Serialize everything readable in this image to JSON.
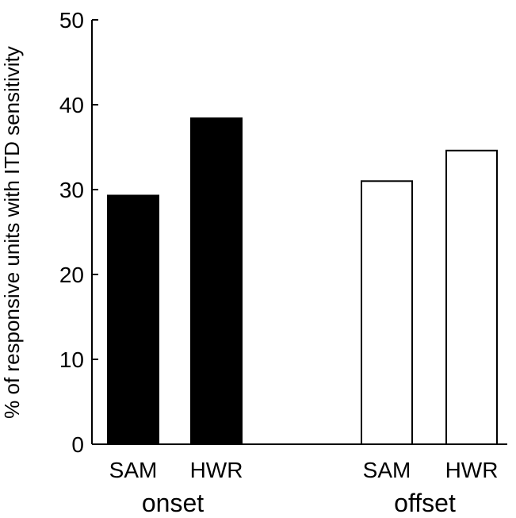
{
  "chart_data": {
    "type": "bar",
    "ylabel": "% of responsive units with ITD sensitivity",
    "xlabel": "",
    "ylim": [
      0,
      50
    ],
    "yticks": [
      0,
      10,
      20,
      30,
      40,
      50
    ],
    "grid": false,
    "groups": [
      {
        "label": "onset",
        "color": "#000000",
        "fill": "filled",
        "categories": [
          "SAM",
          "HWR"
        ],
        "values": [
          29.3,
          38.4
        ]
      },
      {
        "label": "offset",
        "color": "#000000",
        "fill": "open",
        "categories": [
          "SAM",
          "HWR"
        ],
        "values": [
          31.0,
          34.6
        ]
      }
    ]
  }
}
